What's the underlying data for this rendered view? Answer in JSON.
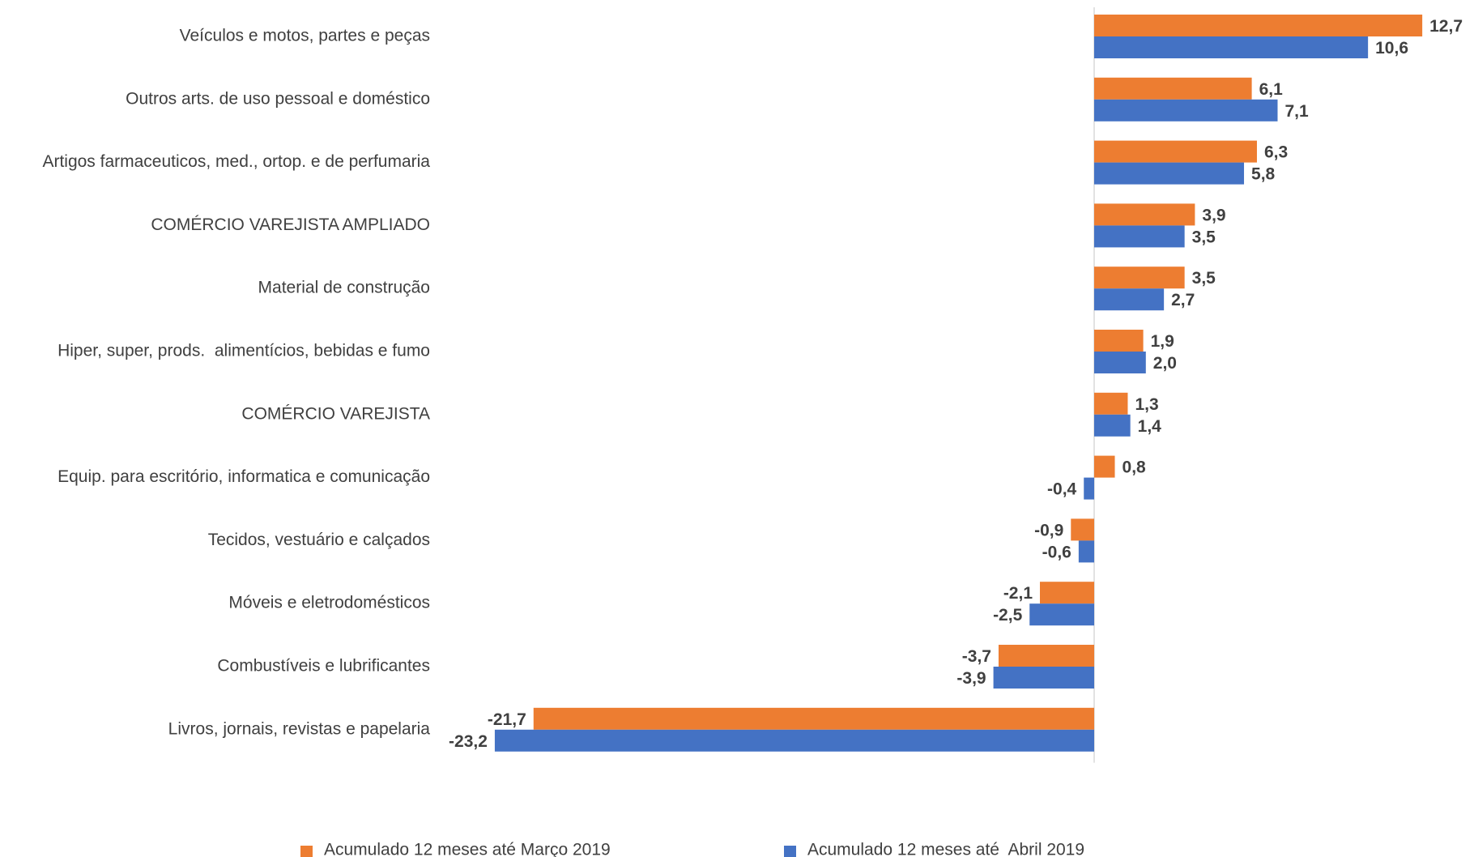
{
  "chart_data": {
    "type": "bar",
    "orientation": "horizontal",
    "categories": [
      "Veículos e motos, partes e peças",
      "Outros arts. de uso pessoal e doméstico",
      "Artigos farmaceuticos, med., ortop. e de perfumaria",
      "COMÉRCIO VAREJISTA AMPLIADO",
      "Material de construção",
      "Hiper, super, prods.  alimentícios, bebidas e fumo",
      "COMÉRCIO VAREJISTA",
      "Equip. para escritório, informatica e comunicação",
      "Tecidos, vestuário e calçados",
      "Móveis e eletrodomésticos",
      "Combustíveis e lubrificantes",
      "Livros, jornais, revistas e papelaria"
    ],
    "series": [
      {
        "name": "Acumulado 12 meses até Março 2019",
        "color": "#ed7d31",
        "values": [
          12.7,
          6.1,
          6.3,
          3.9,
          3.5,
          1.9,
          1.3,
          0.8,
          -0.9,
          -2.1,
          -3.7,
          -21.7
        ],
        "value_labels": [
          "12,7",
          "6,1",
          "6,3",
          "3,9",
          "3,5",
          "1,9",
          "1,3",
          "0,8",
          "-0,9",
          "-2,1",
          "-3,7",
          "-21,7"
        ]
      },
      {
        "name": "Acumulado 12 meses até  Abril 2019",
        "color": "#4472c4",
        "values": [
          10.6,
          7.1,
          5.8,
          3.5,
          2.7,
          2.0,
          1.4,
          -0.4,
          -0.6,
          -2.5,
          -3.9,
          -23.2
        ],
        "value_labels": [
          "10,6",
          "7,1",
          "5,8",
          "3,5",
          "2,7",
          "2,0",
          "1,4",
          "-0,4",
          "-0,6",
          "-2,5",
          "-3,9",
          "-23,2"
        ]
      }
    ],
    "legend": "bottom"
  }
}
